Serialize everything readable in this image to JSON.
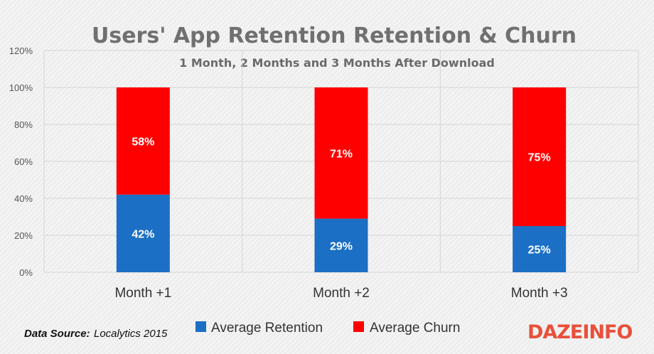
{
  "chart_data": {
    "type": "bar",
    "stacked": true,
    "title": "Users' App Retention Retention & Churn",
    "subtitle": "1 Month, 2 Months and 3 Months After Download",
    "categories": [
      "Month +1",
      "Month +2",
      "Month +3"
    ],
    "series": [
      {
        "name": "Average Retention",
        "values": [
          42,
          29,
          25
        ],
        "labels": [
          "42%",
          "29%",
          "25%"
        ],
        "color": "#1b6fc4"
      },
      {
        "name": "Average Churn",
        "values": [
          58,
          71,
          75
        ],
        "labels": [
          "58%",
          "71%",
          "75%"
        ],
        "color": "#ff0000"
      }
    ],
    "ylim": [
      0,
      120
    ],
    "yticks": [
      0,
      20,
      40,
      60,
      80,
      100,
      120
    ],
    "ytick_labels": [
      "0%",
      "20%",
      "40%",
      "60%",
      "80%",
      "100%",
      "120%"
    ],
    "grid": true,
    "legend_position": "bottom"
  },
  "source": {
    "label": "Data Source:",
    "value": "Localytics 2015"
  },
  "logo": {
    "text": "DAZEINFO"
  }
}
